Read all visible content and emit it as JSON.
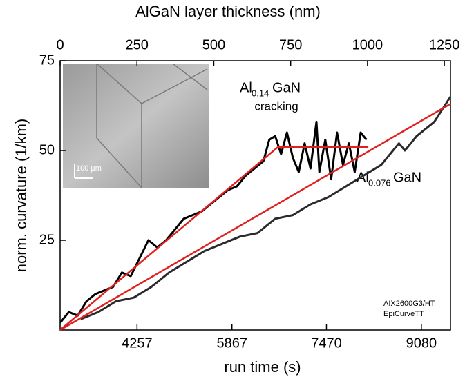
{
  "chart_data": {
    "type": "line",
    "x_label": "run time (s)",
    "y_label": "norm. curvature (1/km)",
    "x2_label": "AlGaN layer thickness (nm)",
    "xlim": [
      2952,
      9574
    ],
    "xticks": [
      4257,
      5867,
      7470,
      9080
    ],
    "x2lim": [
      0,
      1270
    ],
    "x2ticks": [
      0,
      250,
      500,
      750,
      1000,
      1250
    ],
    "ylim": [
      0,
      75
    ],
    "yticks": [
      25,
      50,
      75
    ],
    "series": [
      {
        "color": "#000000",
        "x": [
          2952,
          3100,
          3250,
          3400,
          3550,
          3700,
          3850,
          4000,
          4150,
          4300,
          4450,
          4600,
          4750,
          4900,
          5050,
          5200,
          5350,
          5500,
          5650,
          5800,
          5950,
          6100,
          6250,
          6400,
          6500,
          6600,
          6700,
          6800,
          6900,
          7000,
          7100,
          7200,
          7300,
          7350,
          7450,
          7550,
          7650,
          7750,
          7850,
          7950,
          8050,
          8150
        ],
        "values": [
          2,
          5,
          4,
          8,
          10,
          11,
          12,
          16,
          15,
          20,
          25,
          23,
          25,
          28,
          31,
          32,
          33,
          35,
          37,
          39,
          40,
          43,
          45,
          47,
          53,
          54,
          49,
          55,
          48,
          44,
          52,
          45,
          58,
          44,
          53,
          42,
          55,
          46,
          52,
          44,
          55,
          53
        ]
      },
      {
        "color": "#2a2a2a",
        "x": [
          3300,
          3600,
          3900,
          4200,
          4500,
          4800,
          5100,
          5400,
          5700,
          6000,
          6300,
          6600,
          6900,
          7200,
          7500,
          7800,
          8100,
          8400,
          8700,
          8800,
          9000,
          9300,
          9574
        ],
        "values": [
          3,
          5,
          8,
          9,
          12,
          16,
          19,
          22,
          24,
          26,
          27,
          31,
          32,
          35,
          37,
          40,
          43,
          46,
          52,
          50,
          54,
          58,
          65
        ]
      },
      {
        "color": "#e02020",
        "x": [
          2952,
          6650,
          8180
        ],
        "values": [
          0,
          51,
          51
        ]
      },
      {
        "color": "#e02020",
        "x": [
          2952,
          9574
        ],
        "values": [
          0,
          63
        ]
      }
    ],
    "annotations": [
      {
        "base": "Al",
        "sub": "0.14",
        "rest": "GaN",
        "line2": "cracking"
      },
      {
        "base": "Al",
        "sub": "0.076",
        "rest": "GaN"
      }
    ],
    "footnote": [
      "AIX2600G3/HT",
      "EpiCurveTT"
    ],
    "inset_scale": "100 µm"
  }
}
